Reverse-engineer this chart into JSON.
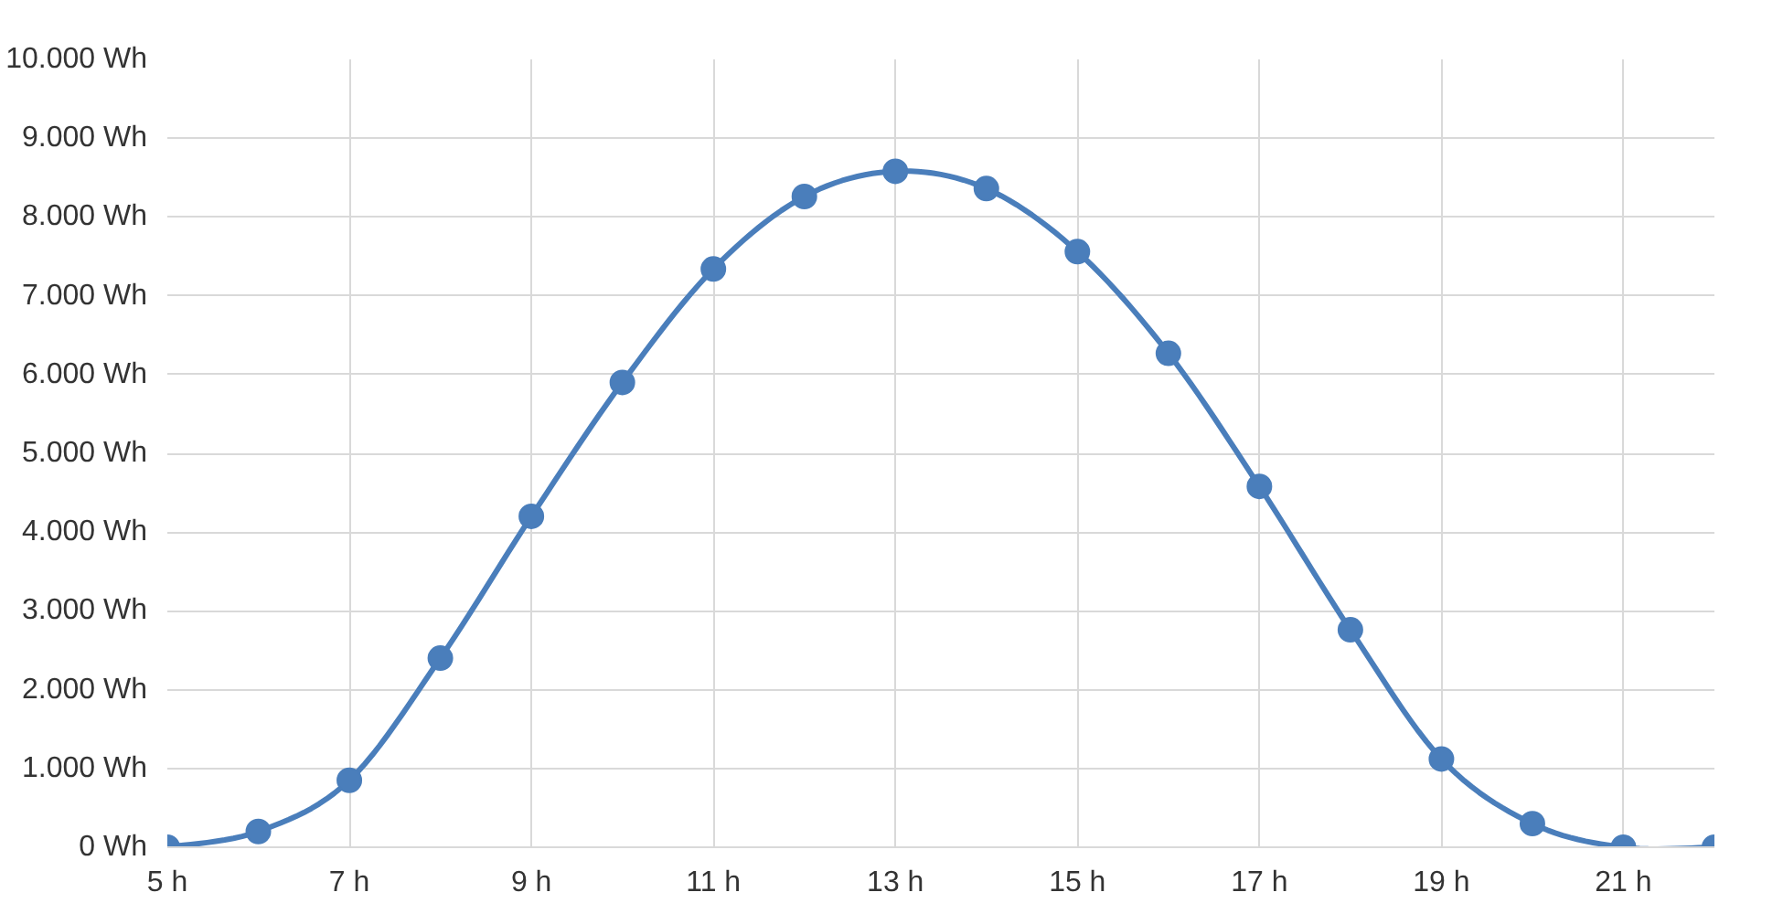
{
  "chart_data": {
    "type": "line",
    "marker": "circle",
    "grid": true,
    "x": [
      5,
      6,
      7,
      8,
      9,
      10,
      11,
      12,
      13,
      14,
      15,
      16,
      17,
      18,
      19,
      20,
      21,
      22
    ],
    "series": [
      {
        "color": "#4a7ebb",
        "values": [
          0,
          200,
          850,
          2400,
          4200,
          5900,
          7340,
          8260,
          8580,
          8360,
          7560,
          6270,
          4580,
          2760,
          1120,
          300,
          0,
          0
        ]
      }
    ],
    "xlim": [
      5,
      22
    ],
    "xticks": [
      {
        "value": 5,
        "label": "5 h"
      },
      {
        "value": 7,
        "label": "7 h"
      },
      {
        "value": 9,
        "label": "9 h"
      },
      {
        "value": 11,
        "label": "11 h"
      },
      {
        "value": 13,
        "label": "13 h"
      },
      {
        "value": 15,
        "label": "15 h"
      },
      {
        "value": 17,
        "label": "17 h"
      },
      {
        "value": 19,
        "label": "19 h"
      },
      {
        "value": 21,
        "label": "21 h"
      }
    ],
    "ylim": [
      0,
      10000
    ],
    "yticks": [
      {
        "value": 0,
        "label": "0 Wh"
      },
      {
        "value": 1000,
        "label": "1.000 Wh"
      },
      {
        "value": 2000,
        "label": "2.000 Wh"
      },
      {
        "value": 3000,
        "label": "3.000 Wh"
      },
      {
        "value": 4000,
        "label": "4.000 Wh"
      },
      {
        "value": 5000,
        "label": "5.000 Wh"
      },
      {
        "value": 6000,
        "label": "6.000 Wh"
      },
      {
        "value": 7000,
        "label": "7.000 Wh"
      },
      {
        "value": 8000,
        "label": "8.000 Wh"
      },
      {
        "value": 9000,
        "label": "9.000 Wh"
      },
      {
        "value": 10000,
        "label": "10.000 Wh"
      }
    ]
  }
}
